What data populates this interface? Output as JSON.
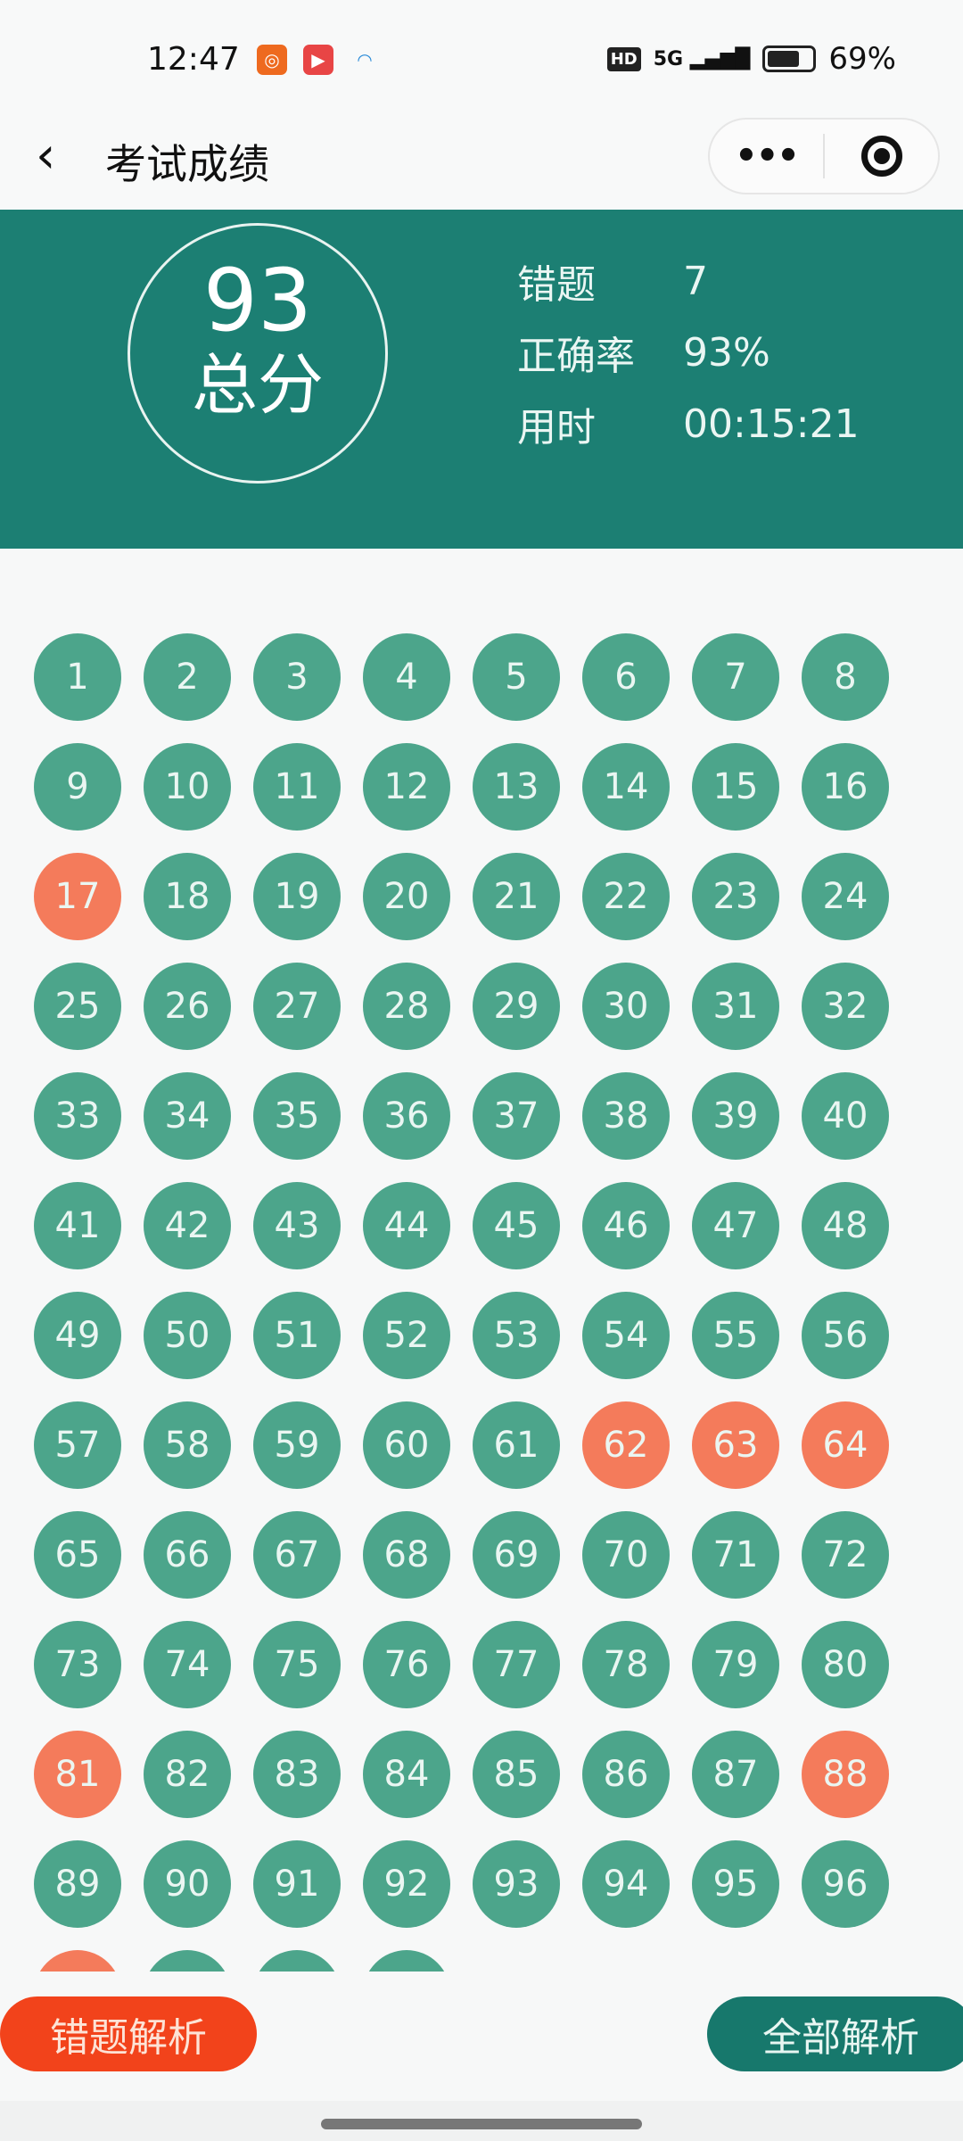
{
  "status_bar": {
    "time": "12:47",
    "network": "5G",
    "hd": "HD",
    "battery": "69%",
    "battery_level": 0.69
  },
  "nav": {
    "title": "考试成绩",
    "more_label": "•••"
  },
  "summary": {
    "score": "93",
    "score_label": "总分",
    "stats": [
      {
        "label": "错题",
        "value": "7"
      },
      {
        "label": "正确率",
        "value": "93%"
      },
      {
        "label": "用时",
        "value": "00:15:21"
      }
    ]
  },
  "colors": {
    "correct": "#4ca58b",
    "wrong": "#f47b5b",
    "header": "#1c7f73"
  },
  "questions": {
    "visible_numbers": 96,
    "wrong": [
      17,
      62,
      63,
      64,
      81,
      88
    ],
    "partial_row_wrong": [
      true,
      false,
      false,
      false
    ]
  },
  "buttons": {
    "wrong_analysis": "错题解析",
    "all_analysis": "全部解析"
  }
}
